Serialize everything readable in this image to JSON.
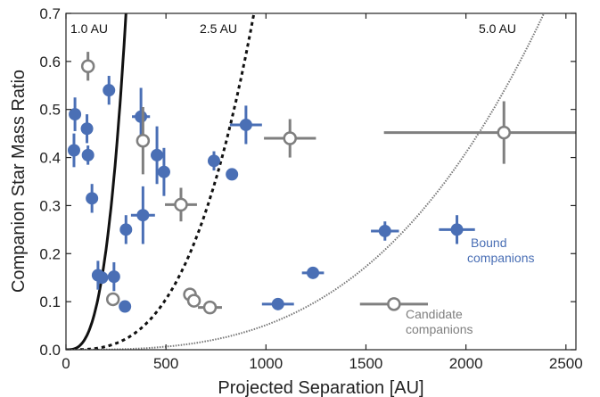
{
  "chart_data": {
    "type": "scatter",
    "xlabel": "Projected Separation [AU]",
    "ylabel": "Companion Star Mass Ratio",
    "xlim": [
      0,
      2550
    ],
    "ylim": [
      0,
      0.7
    ],
    "grid": false,
    "x_ticks": [
      "0",
      "500",
      "1000",
      "1500",
      "2000",
      "2500"
    ],
    "y_ticks": [
      "0.0",
      "0.1",
      "0.2",
      "0.3",
      "0.4",
      "0.5",
      "0.6",
      "0.7"
    ],
    "series": [
      {
        "name": "Bound companions",
        "marker": "filled-circle",
        "color": "#4a6fb5",
        "points": [
          {
            "x": 45,
            "y": 0.49,
            "xerr": 10,
            "yerr": 0.035
          },
          {
            "x": 40,
            "y": 0.415,
            "xerr": 10,
            "yerr": 0.035
          },
          {
            "x": 105,
            "y": 0.46,
            "xerr": 10,
            "yerr": 0.03
          },
          {
            "x": 110,
            "y": 0.405,
            "xerr": 10,
            "yerr": 0.02
          },
          {
            "x": 215,
            "y": 0.54,
            "xerr": 10,
            "yerr": 0.03
          },
          {
            "x": 130,
            "y": 0.315,
            "xerr": 10,
            "yerr": 0.03
          },
          {
            "x": 160,
            "y": 0.155,
            "xerr": 20,
            "yerr": 0.03
          },
          {
            "x": 180,
            "y": 0.15,
            "xerr": 25,
            "yerr": 0.01
          },
          {
            "x": 240,
            "y": 0.152,
            "xerr": 15,
            "yerr": 0.03
          },
          {
            "x": 295,
            "y": 0.09,
            "xerr": 10,
            "yerr": 0.01
          },
          {
            "x": 300,
            "y": 0.25,
            "xerr": 25,
            "yerr": 0.03
          },
          {
            "x": 375,
            "y": 0.485,
            "xerr": 45,
            "yerr": 0.06
          },
          {
            "x": 385,
            "y": 0.28,
            "xerr": 60,
            "yerr": 0.06
          },
          {
            "x": 455,
            "y": 0.405,
            "xerr": 30,
            "yerr": 0.06
          },
          {
            "x": 490,
            "y": 0.37,
            "xerr": 30,
            "yerr": 0.05
          },
          {
            "x": 740,
            "y": 0.393,
            "xerr": 20,
            "yerr": 0.02
          },
          {
            "x": 830,
            "y": 0.365,
            "xerr": 20,
            "yerr": 0.01
          },
          {
            "x": 900,
            "y": 0.468,
            "xerr": 80,
            "yerr": 0.04
          },
          {
            "x": 1060,
            "y": 0.095,
            "xerr": 80,
            "yerr": 0.01
          },
          {
            "x": 1235,
            "y": 0.16,
            "xerr": 55,
            "yerr": 0.01
          },
          {
            "x": 1595,
            "y": 0.247,
            "xerr": 70,
            "yerr": 0.02
          },
          {
            "x": 1955,
            "y": 0.25,
            "xerr": 90,
            "yerr": 0.03
          }
        ]
      },
      {
        "name": "Candidate companions",
        "marker": "open-circle",
        "color": "#7f7f7f",
        "points": [
          {
            "x": 110,
            "y": 0.59,
            "xerr": 10,
            "yerr": 0.03
          },
          {
            "x": 235,
            "y": 0.105,
            "xerr": 20,
            "yerr": 0.01
          },
          {
            "x": 385,
            "y": 0.435,
            "xerr": 30,
            "yerr": 0.07
          },
          {
            "x": 575,
            "y": 0.302,
            "xerr": 80,
            "yerr": 0.035
          },
          {
            "x": 620,
            "y": 0.115,
            "xerr": 30,
            "yerr": 0.01
          },
          {
            "x": 640,
            "y": 0.102,
            "xerr": 30,
            "yerr": 0.01
          },
          {
            "x": 720,
            "y": 0.088,
            "xerr": 60,
            "yerr": 0.01
          },
          {
            "x": 1120,
            "y": 0.44,
            "xerr": 130,
            "yerr": 0.04
          },
          {
            "x": 1640,
            "y": 0.095,
            "xerr": 170,
            "yerr": 0.01
          },
          {
            "x": 2190,
            "y": 0.452,
            "xerr": 600,
            "yerr": 0.065
          }
        ]
      }
    ],
    "curves": [
      {
        "label": "1.0 AU",
        "scale": 300,
        "style": "solid"
      },
      {
        "label": "2.5 AU",
        "scale": 940,
        "style": "dashed"
      },
      {
        "label": "5.0 AU",
        "scale": 2390,
        "style": "dotted"
      }
    ],
    "legend": {
      "placement": "bottom-right",
      "entries": [
        {
          "line1": "Bound",
          "line2": "companions",
          "color": "#4a6fb5"
        },
        {
          "line1": "Candidate",
          "line2": "companions",
          "color": "#7f7f7f"
        }
      ]
    }
  }
}
